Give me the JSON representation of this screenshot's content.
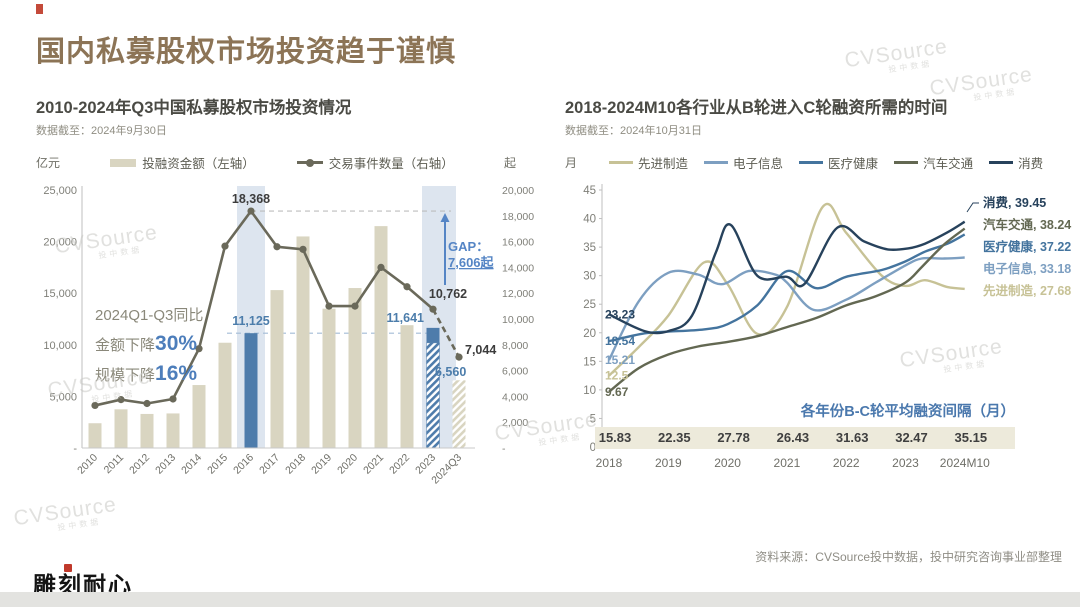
{
  "slide": {
    "title": "国内私募股权市场投资趋于谨慎",
    "footer_source": "资料来源：CVSource投中数据，投中研究咨询事业部整理",
    "logo_text": "雕刻耐心",
    "watermark": "CVSource",
    "watermark_sub": "投中数据"
  },
  "left_chart": {
    "title": "2010-2024年Q3中国私募股权市场投资情况",
    "data_cutoff": "数据截至：2024年9月30日",
    "unit_left": "亿元",
    "unit_right": "起",
    "legend_bar": "投融资金额（左轴）",
    "legend_line": "交易事件数量（右轴）",
    "annotation": {
      "line1": "2024Q1-Q3同比",
      "line2_prefix": "金额下降",
      "line2_value": "30%",
      "line3_prefix": "规模下降",
      "line3_value": "16%"
    },
    "gap_label_1": "GAP：",
    "gap_label_2": "7,606起"
  },
  "right_chart": {
    "title": "2018-2024M10各行业从B轮进入C轮融资所需的时间",
    "data_cutoff": "数据截至：2024年10月31日",
    "unit": "月"
  },
  "chart_data": [
    {
      "type": "bar+line",
      "title": "2010-2024年Q3中国私募股权市场投资情况",
      "categories": [
        "2010",
        "2011",
        "2012",
        "2013",
        "2014",
        "2015",
        "2016",
        "2017",
        "2018",
        "2019",
        "2020",
        "2021",
        "2022",
        "2023",
        "2024Q3"
      ],
      "series": [
        {
          "name": "投融资金额（左轴）",
          "type": "bar",
          "axis": "left",
          "values": [
            2400,
            3750,
            3300,
            3350,
            6100,
            10200,
            11125,
            15300,
            20500,
            13500,
            15500,
            21500,
            11900,
            11641,
            6560
          ]
        },
        {
          "name": "交易事件数量（右轴）",
          "type": "line",
          "axis": "right",
          "values": [
            3300,
            3750,
            3450,
            3800,
            7700,
            15650,
            18368,
            15600,
            15400,
            11000,
            11000,
            14000,
            12500,
            10762,
            7044
          ]
        }
      ],
      "ylim_left": [
        0,
        25000
      ],
      "ytick_left": 5000,
      "ylim_right": [
        0,
        20000
      ],
      "ytick_right": 2000,
      "zero_tick_label": "-",
      "label_indices": [
        6,
        13,
        14
      ],
      "styles": {
        "solid_blue_bar": 6,
        "hatch_blue_bar": 13,
        "hatch_tan_bar": 14,
        "band_categories": [
          6,
          13
        ],
        "dashed_line_from": 13
      },
      "gap_value": "7,606起",
      "colors": {
        "bar": "#d9d5c1",
        "bar_highlight": "#4e7cab",
        "line": "#6a695a",
        "band": "#dde5ef",
        "blue_label": "#4c7dab",
        "dark_label": "#3c3c3c",
        "gap_blue": "#5585c5",
        "ref_dash_gray": "#bdbdbd",
        "ref_dash_blue": "#a3bcd6"
      }
    },
    {
      "type": "line",
      "title": "2018-2024M10各行业从B轮进入C轮融资所需的时间",
      "x_ticks": [
        "2018",
        "2019",
        "2020",
        "2021",
        "2022",
        "2023",
        "2024M10"
      ],
      "ylim": [
        0,
        45
      ],
      "ytick": 5,
      "series": [
        {
          "name": "先进制造",
          "color": "#c7c296",
          "start_label": "12.5",
          "end_label": "27.68",
          "points": [
            [
              2018,
              12.5
            ],
            [
              2018.5,
              17.5
            ],
            [
              2019,
              23
            ],
            [
              2019.6,
              32.3
            ],
            [
              2020,
              28.5
            ],
            [
              2020.5,
              19.8
            ],
            [
              2021,
              24.5
            ],
            [
              2021.6,
              42
            ],
            [
              2022,
              37.5
            ],
            [
              2022.6,
              30
            ],
            [
              2023,
              28.2
            ],
            [
              2023.6,
              29.2
            ],
            [
              2024.3,
              28
            ],
            [
              2024.83,
              27.68
            ]
          ]
        },
        {
          "name": "电子信息",
          "color": "#7d9fc1",
          "start_label": "15.21",
          "end_label": "33.18",
          "points": [
            [
              2018,
              15.21
            ],
            [
              2018.5,
              25.5
            ],
            [
              2019,
              30.5
            ],
            [
              2019.5,
              30.2
            ],
            [
              2019.9,
              28.5
            ],
            [
              2020.35,
              30.8
            ],
            [
              2020.8,
              30.2
            ],
            [
              2021,
              28.8
            ],
            [
              2021.45,
              24
            ],
            [
              2022,
              25.8
            ],
            [
              2022.5,
              28.8
            ],
            [
              2023,
              31.8
            ],
            [
              2023.5,
              33
            ],
            [
              2024.2,
              33
            ],
            [
              2024.83,
              33.18
            ]
          ]
        },
        {
          "name": "医疗健康",
          "color": "#44749e",
          "start_label": "18.54",
          "end_label": "37.22",
          "points": [
            [
              2018,
              18.54
            ],
            [
              2018.6,
              19.9
            ],
            [
              2019,
              20.2
            ],
            [
              2019.6,
              20.6
            ],
            [
              2020,
              21.5
            ],
            [
              2020.5,
              24.8
            ],
            [
              2021,
              30.8
            ],
            [
              2021.5,
              27.8
            ],
            [
              2022,
              29.8
            ],
            [
              2022.6,
              31
            ],
            [
              2023,
              32.5
            ],
            [
              2023.6,
              34.2
            ],
            [
              2024.3,
              35.6
            ],
            [
              2024.83,
              37.22
            ]
          ]
        },
        {
          "name": "汽车交通",
          "color": "#636852",
          "start_label": "9.67",
          "end_label": "38.24",
          "points": [
            [
              2018,
              9.67
            ],
            [
              2018.5,
              13.8
            ],
            [
              2019,
              16.2
            ],
            [
              2019.5,
              17.6
            ],
            [
              2020,
              18.4
            ],
            [
              2020.5,
              19.4
            ],
            [
              2021,
              21
            ],
            [
              2021.5,
              22.6
            ],
            [
              2022,
              24.8
            ],
            [
              2022.5,
              26.4
            ],
            [
              2023,
              28.8
            ],
            [
              2023.5,
              31.5
            ],
            [
              2024.2,
              35.5
            ],
            [
              2024.83,
              38.24
            ]
          ]
        },
        {
          "name": "消费",
          "color": "#27425c",
          "start_label": "23.23",
          "end_label": "39.45",
          "points": [
            [
              2018,
              23.23
            ],
            [
              2018.6,
              20.3
            ],
            [
              2019,
              20.3
            ],
            [
              2019.4,
              23
            ],
            [
              2019.8,
              34
            ],
            [
              2020.05,
              38.9
            ],
            [
              2020.5,
              30
            ],
            [
              2021,
              29.8
            ],
            [
              2021.3,
              28.6
            ],
            [
              2021.85,
              38.4
            ],
            [
              2022.3,
              36
            ],
            [
              2022.7,
              34.6
            ],
            [
              2023.1,
              34.8
            ],
            [
              2023.6,
              35.6
            ],
            [
              2024.3,
              37.6
            ],
            [
              2024.83,
              39.45
            ]
          ]
        }
      ],
      "table": {
        "caption": "各年份B-C轮平均融资间隔（月）",
        "caption_color": "#4a78ad",
        "values": [
          "15.83",
          "22.35",
          "27.78",
          "26.43",
          "31.63",
          "32.47",
          "35.15"
        ],
        "strip_color": "#edeadb"
      }
    }
  ]
}
